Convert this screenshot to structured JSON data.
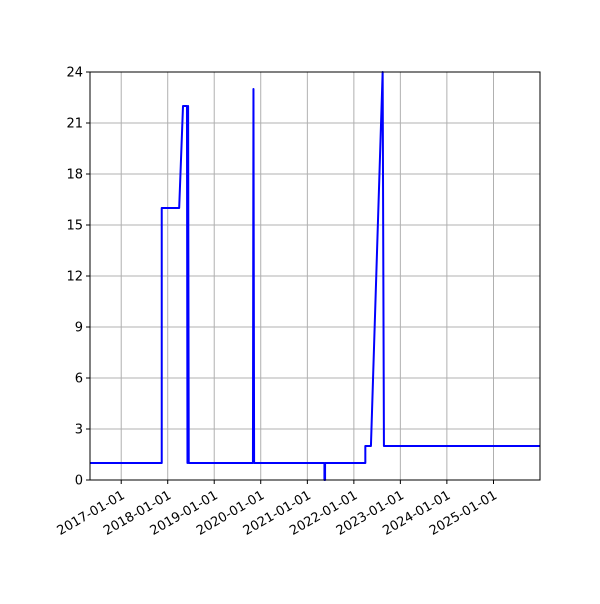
{
  "chart_data": {
    "type": "line",
    "x_type": "date",
    "xlim": [
      "2016-05-01",
      "2026-01-01"
    ],
    "ylim": [
      0,
      24
    ],
    "x_ticks": [
      "2017-01-01",
      "2018-01-01",
      "2019-01-01",
      "2020-01-01",
      "2021-01-01",
      "2022-01-01",
      "2023-01-01",
      "2024-01-01",
      "2025-01-01"
    ],
    "y_ticks": [
      0,
      3,
      6,
      9,
      12,
      15,
      18,
      21,
      24
    ],
    "grid": true,
    "color": "#0000ff",
    "series": [
      {
        "points": [
          [
            "2016-05-01",
            1
          ],
          [
            "2017-11-15",
            1
          ],
          [
            "2017-11-15",
            16
          ],
          [
            "2018-04-01",
            16
          ],
          [
            "2018-05-01",
            22
          ],
          [
            "2018-06-01",
            22
          ],
          [
            "2018-06-05",
            1
          ],
          [
            "2018-06-10",
            22
          ],
          [
            "2018-06-15",
            1
          ],
          [
            "2019-11-01",
            1
          ],
          [
            "2019-11-05",
            23
          ],
          [
            "2019-11-10",
            1
          ],
          [
            "2021-05-15",
            1
          ],
          [
            "2021-05-15",
            0
          ],
          [
            "2021-05-20",
            0
          ],
          [
            "2021-05-20",
            1
          ],
          [
            "2022-04-01",
            1
          ],
          [
            "2022-04-01",
            2
          ],
          [
            "2022-05-15",
            2
          ],
          [
            "2022-08-15",
            24
          ],
          [
            "2022-08-25",
            2
          ],
          [
            "2026-01-01",
            2
          ]
        ]
      }
    ]
  }
}
